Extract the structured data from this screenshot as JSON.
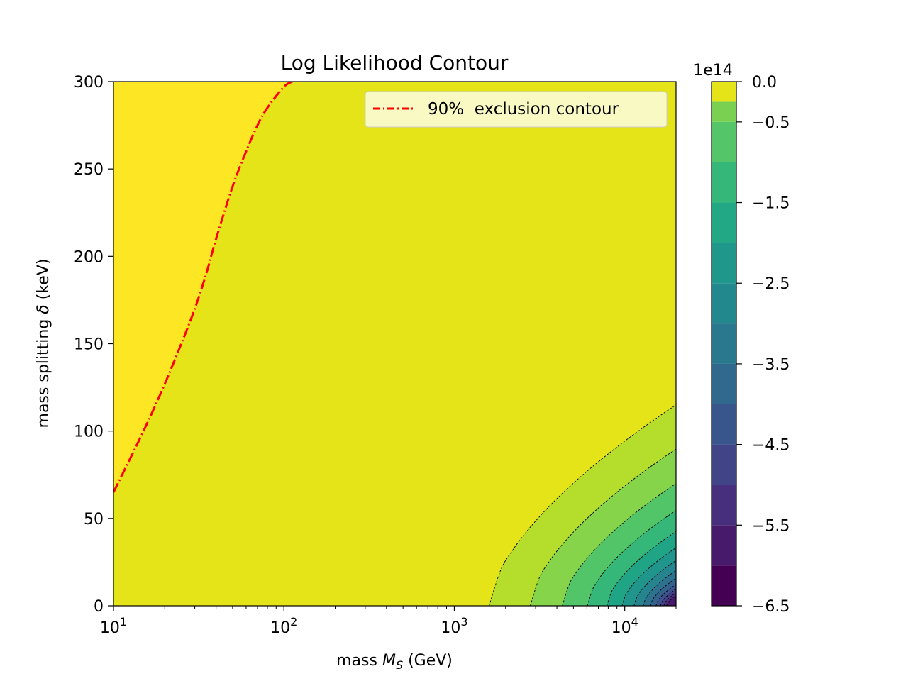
{
  "chart_data": {
    "type": "heatmap",
    "subtype": "filled-contour",
    "title": "Log Likelihood Contour",
    "xlabel": "mass M_S (GeV)",
    "xlabel_parts": {
      "pre": "mass ",
      "var": "M",
      "sub": "S",
      "post": " (GeV)"
    },
    "ylabel": "mass splitting δ (keV)",
    "ylabel_parts": {
      "pre": "mass splitting ",
      "var": "δ",
      "post": " (keV)"
    },
    "x_scale": "log",
    "xlim": [
      10,
      20000
    ],
    "ylim": [
      0,
      300
    ],
    "x_ticks": [
      {
        "base": "10",
        "exp": "1"
      },
      {
        "base": "10",
        "exp": "2"
      },
      {
        "base": "10",
        "exp": "3"
      },
      {
        "base": "10",
        "exp": "4"
      }
    ],
    "y_ticks": [
      "0",
      "50",
      "100",
      "150",
      "200",
      "250",
      "300"
    ],
    "grid": false,
    "colorbar": {
      "multiplier": "1e14",
      "vmin": -6.5,
      "vmax": 0.0,
      "levels": [
        -6.5,
        -6.0,
        -5.5,
        -5.0,
        -4.5,
        -4.0,
        -3.5,
        -3.0,
        -2.5,
        -2.0,
        -1.5,
        -1.0,
        -0.5,
        -0.25,
        0.0
      ],
      "colors": [
        "#440154",
        "#481668",
        "#482878",
        "#443983",
        "#3e4989",
        "#375a8c",
        "#31678e",
        "#2a788e",
        "#23888e",
        "#1f988b",
        "#22a884",
        "#35b779",
        "#54c568",
        "#7ad151",
        "#a5db36",
        "#d2e21b",
        "#fde725"
      ],
      "ticks": [
        "0.0",
        "−0.5",
        "−1.5",
        "−2.5",
        "−3.5",
        "−4.5",
        "−5.5",
        "−6.5"
      ]
    },
    "regions": [
      {
        "level_max": 0.0,
        "color": "#fde725",
        "note": "upper-left region, left of exclusion curve"
      },
      {
        "level_max": -0.25,
        "color": "#e5e419"
      }
    ],
    "exclusion_contour": {
      "name": "90%  exclusion contour",
      "color": "#ff0000",
      "style": "dash-dot",
      "x": [
        10,
        15,
        20,
        25,
        30,
        35,
        40,
        50,
        60,
        70,
        80,
        100,
        112
      ],
      "y": [
        65,
        100,
        127,
        150,
        170,
        190,
        210,
        240,
        260,
        275,
        285,
        297,
        300
      ]
    },
    "legend": {
      "location": "upper-right",
      "entries": [
        "90%  exclusion contour"
      ]
    }
  }
}
